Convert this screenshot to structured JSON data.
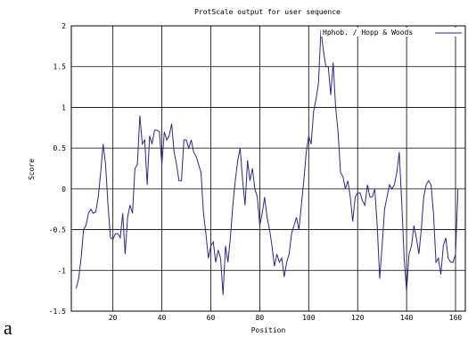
{
  "chart_data": {
    "type": "line",
    "title": "ProtScale output for user sequence",
    "xlabel": "Position",
    "ylabel": "Score",
    "panel_label": "a",
    "x": [
      5,
      6,
      7,
      8,
      9,
      10,
      11,
      12,
      13,
      14,
      15,
      16,
      17,
      18,
      19,
      20,
      21,
      22,
      23,
      24,
      25,
      26,
      27,
      28,
      29,
      30,
      31,
      32,
      33,
      34,
      35,
      36,
      37,
      38,
      39,
      40,
      41,
      42,
      43,
      44,
      45,
      46,
      47,
      48,
      49,
      50,
      51,
      52,
      53,
      54,
      55,
      56,
      57,
      58,
      59,
      60,
      61,
      62,
      63,
      64,
      65,
      66,
      67,
      68,
      69,
      70,
      71,
      72,
      73,
      74,
      75,
      76,
      77,
      78,
      79,
      80,
      81,
      82,
      83,
      84,
      85,
      86,
      87,
      88,
      89,
      90,
      91,
      92,
      93,
      94,
      95,
      96,
      97,
      98,
      99,
      100,
      101,
      102,
      103,
      104,
      105,
      106,
      107,
      108,
      109,
      110,
      111,
      112,
      113,
      114,
      115,
      116,
      117,
      118,
      119,
      120,
      121,
      122,
      123,
      124,
      125,
      126,
      127,
      128,
      129,
      130,
      131,
      132,
      133,
      134,
      135,
      136,
      137,
      138,
      139,
      140,
      141,
      142,
      143,
      144,
      145,
      146,
      147,
      148,
      149,
      150,
      151,
      152,
      153,
      154,
      155,
      156,
      157,
      158,
      159,
      160,
      161
    ],
    "series": [
      {
        "name": "Hphob. / Hopp & Woods",
        "color": "#2a2a80",
        "values": [
          -1.22,
          -1.1,
          -0.85,
          -0.5,
          -0.45,
          -0.3,
          -0.25,
          -0.3,
          -0.28,
          -0.1,
          0.2,
          0.55,
          0.3,
          -0.2,
          -0.6,
          -0.62,
          -0.55,
          -0.55,
          -0.6,
          -0.3,
          -0.8,
          -0.35,
          -0.2,
          -0.3,
          0.25,
          0.3,
          0.9,
          0.55,
          0.6,
          0.05,
          0.65,
          0.55,
          0.72,
          0.72,
          0.7,
          0.3,
          0.7,
          0.6,
          0.65,
          0.8,
          0.45,
          0.3,
          0.1,
          0.1,
          0.6,
          0.6,
          0.5,
          0.6,
          0.45,
          0.4,
          0.3,
          0.2,
          -0.3,
          -0.55,
          -0.85,
          -0.7,
          -0.65,
          -0.9,
          -0.75,
          -0.85,
          -1.3,
          -0.7,
          -0.9,
          -0.6,
          -0.2,
          0.1,
          0.35,
          0.5,
          0.1,
          -0.2,
          0.35,
          0.1,
          0.25,
          0.0,
          -0.1,
          -0.45,
          -0.3,
          -0.1,
          -0.35,
          -0.5,
          -0.7,
          -0.95,
          -0.8,
          -0.9,
          -0.85,
          -1.08,
          -0.9,
          -0.8,
          -0.55,
          -0.45,
          -0.35,
          -0.5,
          -0.2,
          0.1,
          0.45,
          0.65,
          0.55,
          0.95,
          1.1,
          1.3,
          1.95,
          1.7,
          1.5,
          1.5,
          1.15,
          1.55,
          1.0,
          0.7,
          0.2,
          0.15,
          0.0,
          0.1,
          -0.1,
          -0.4,
          -0.1,
          -0.05,
          -0.05,
          -0.15,
          -0.2,
          0.05,
          -0.1,
          -0.1,
          0.0,
          -0.45,
          -1.1,
          -0.7,
          -0.25,
          -0.1,
          0.05,
          0.0,
          0.05,
          0.2,
          0.45,
          -0.15,
          -0.85,
          -1.25,
          -0.8,
          -0.7,
          -0.45,
          -0.6,
          -0.8,
          -0.5,
          -0.1,
          0.05,
          0.1,
          0.05,
          -0.3,
          -0.9,
          -0.85,
          -1.05,
          -0.7,
          -0.6,
          -0.85,
          -0.9,
          -0.9,
          -0.8,
          0.0
        ]
      }
    ],
    "xlim": [
      3,
      164
    ],
    "xticks": [
      20,
      40,
      60,
      80,
      100,
      120,
      140,
      160
    ],
    "ylim": [
      -1.5,
      2
    ],
    "yticks": [
      -1.5,
      -1,
      -0.5,
      0,
      0.5,
      1,
      1.5,
      2
    ],
    "grid": true,
    "legend": "top-right"
  }
}
